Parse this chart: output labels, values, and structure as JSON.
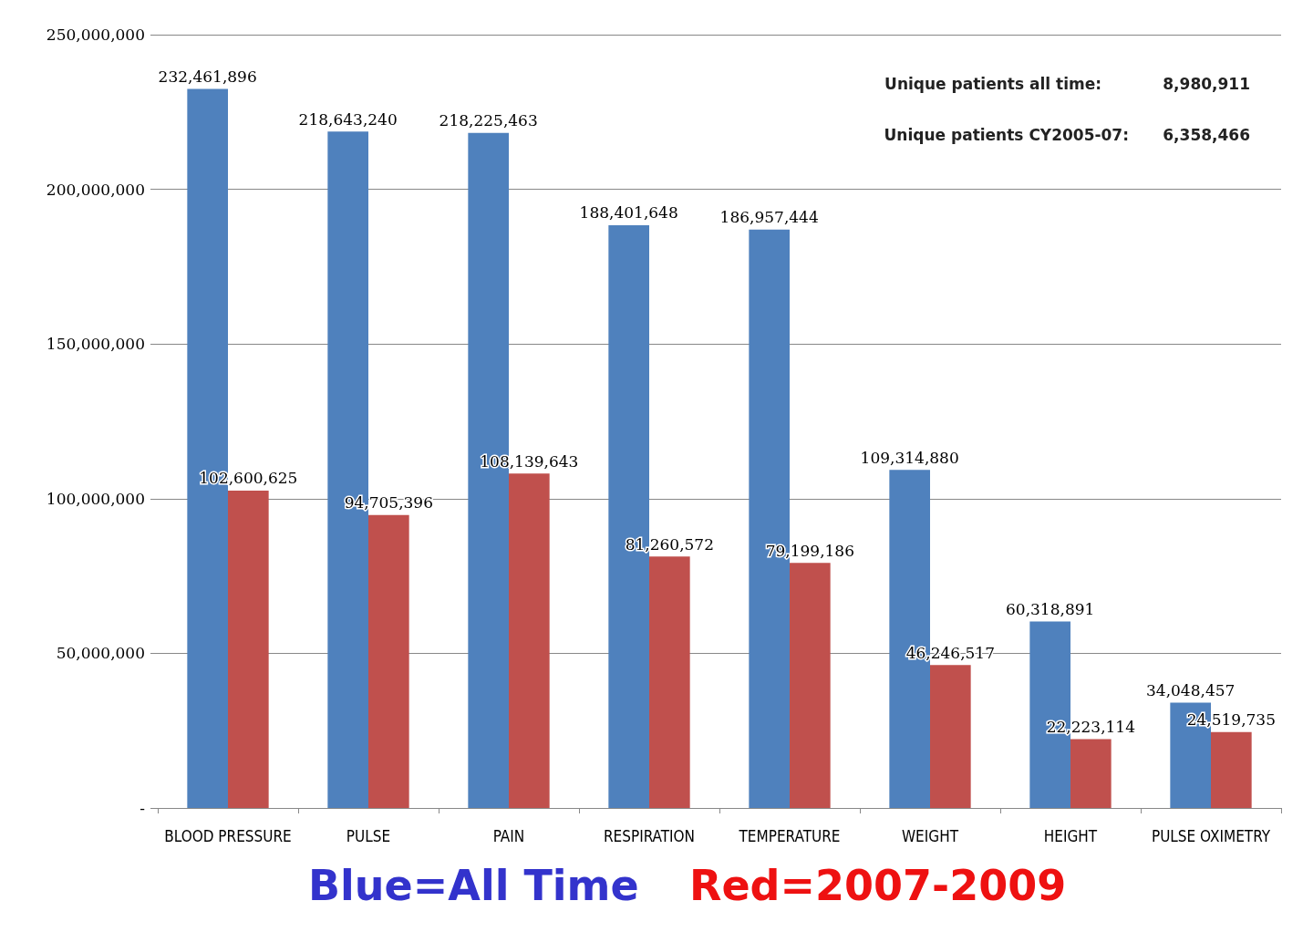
{
  "chart_data": {
    "type": "bar",
    "categories": [
      "BLOOD PRESSURE",
      "PULSE",
      "PAIN",
      "RESPIRATION",
      "TEMPERATURE",
      "WEIGHT",
      "HEIGHT",
      "PULSE OXIMETRY"
    ],
    "series": [
      {
        "color": "#4f81bd",
        "values": [
          232461896,
          218643240,
          218225463,
          188401648,
          186957444,
          109314880,
          60318891,
          34048457
        ],
        "value_labels": [
          "232,461,896",
          "218,643,240",
          "218,225,463",
          "188,401,648",
          "186,957,444",
          "109,314,880",
          "60,318,891",
          "34,048,457"
        ]
      },
      {
        "color": "#c0504d",
        "values": [
          102600625,
          94705396,
          108139643,
          81260572,
          79199186,
          46246517,
          22223114,
          24519735
        ],
        "value_labels": [
          "102,600,625",
          "94,705,396",
          "108,139,643",
          "81,260,572",
          "79,199,186",
          "46,246,517",
          "22,223,114",
          "24,519,735"
        ]
      }
    ],
    "ylim": [
      0,
      250000000
    ],
    "yticks": [
      {
        "value": 0,
        "label": "-"
      },
      {
        "value": 50000000,
        "label": "50,000,000"
      },
      {
        "value": 100000000,
        "label": "100,000,000"
      },
      {
        "value": 150000000,
        "label": "150,000,000"
      },
      {
        "value": 200000000,
        "label": "200,000,000"
      },
      {
        "value": 250000000,
        "label": "250,000,000"
      }
    ],
    "grid": "y",
    "annotations": [
      "Unique patients all time:",
      "8,980,911",
      "Unique patients CY2005-07:",
      "6,358,466",
      "Blue=All Time",
      "Red=2007-2009"
    ]
  }
}
